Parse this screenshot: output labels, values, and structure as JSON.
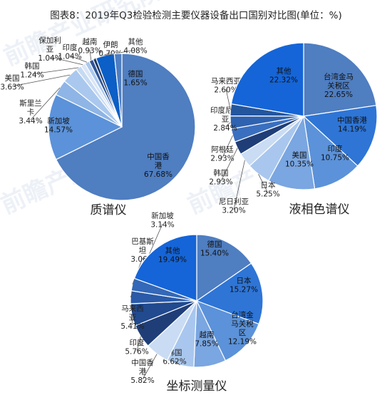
{
  "title": "图表8：2019年Q3检验检测主要仪器设备出口国别对比图(单位：%)",
  "watermark": "前瞻产业研究院",
  "chart_data": [
    {
      "type": "pie",
      "title": "质谱仪",
      "slices": [
        {
          "label": "中国香港",
          "value": 67.68,
          "value_text": "67.68%",
          "color": "#4f7ec1"
        },
        {
          "label": "新加坡",
          "value": 14.57,
          "value_text": "14.57%",
          "color": "#5b92d9"
        },
        {
          "label": "斯里兰卡",
          "value": 3.44,
          "value_text": "3.44%",
          "color": "#8eb5e5"
        },
        {
          "label": "美国",
          "value": 3.63,
          "value_text": "3.63%",
          "color": "#aac8ee"
        },
        {
          "label": "韩国",
          "value": 1.24,
          "value_text": "1.24%",
          "color": "#c6daf3"
        },
        {
          "label": "保加利亚",
          "value": 1.04,
          "value_text": "1.04%",
          "color": "#d9e6f6"
        },
        {
          "label": "印度",
          "value": 1.04,
          "value_text": "1.04%",
          "color": "#aac8ee"
        },
        {
          "label": "越南",
          "value": 0.93,
          "value_text": "0.93%",
          "color": "#2f5597"
        },
        {
          "label": "伊朗",
          "value": 0.7,
          "value_text": "0.70%",
          "color": "#1f3864"
        },
        {
          "label": "其他",
          "value": 4.08,
          "value_text": "4.08%",
          "color": "#0b5fc6"
        },
        {
          "label": "德国",
          "value": 1.65,
          "value_text": "1.65%",
          "color": "#4f7ec1"
        }
      ]
    },
    {
      "type": "pie",
      "title": "液相色谱仪",
      "slices": [
        {
          "label": "台湾金马关税区",
          "value": 22.65,
          "value_text": "22.65%",
          "color": "#4f7ec1"
        },
        {
          "label": "中国香港",
          "value": 14.19,
          "value_text": "14.19%",
          "color": "#2e75d6"
        },
        {
          "label": "印度",
          "value": 10.75,
          "value_text": "10.75%",
          "color": "#5b92d9"
        },
        {
          "label": "美国",
          "value": 10.35,
          "value_text": "10.35%",
          "color": "#7aa6e1"
        },
        {
          "label": "日本",
          "value": 5.25,
          "value_text": "5.25%",
          "color": "#a9c7ee"
        },
        {
          "label": "尼日利亚",
          "value": 3.2,
          "value_text": "3.20%",
          "color": "#c9dcf4"
        },
        {
          "label": "韩国",
          "value": 2.93,
          "value_text": "2.93%",
          "color": "#1f3e78"
        },
        {
          "label": "阿根廷",
          "value": 2.93,
          "value_text": "2.93%",
          "color": "#3a6fc0"
        },
        {
          "label": "印度尼西亚",
          "value": 2.84,
          "value_text": "2.84%",
          "color": "#2f62b0"
        },
        {
          "label": "马来西亚",
          "value": 2.6,
          "value_text": "2.60%",
          "color": "#24569e"
        },
        {
          "label": "其他",
          "value": 22.32,
          "value_text": "22.32%",
          "color": "#1565d8"
        }
      ]
    },
    {
      "type": "pie",
      "title": "坐标测量仪",
      "slices": [
        {
          "label": "德国",
          "value": 15.4,
          "value_text": "15.40%",
          "color": "#4f7ec1"
        },
        {
          "label": "日本",
          "value": 15.27,
          "value_text": "15.27%",
          "color": "#2e75d6"
        },
        {
          "label": "台湾金马关税区",
          "value": 12.19,
          "value_text": "12.19%",
          "color": "#5b92d9"
        },
        {
          "label": "越南",
          "value": 7.85,
          "value_text": "7.85%",
          "color": "#7aa6e1"
        },
        {
          "label": "韩国",
          "value": 6.62,
          "value_text": "6.62%",
          "color": "#a9c7ee"
        },
        {
          "label": "中国香港",
          "value": 5.82,
          "value_text": "5.82%",
          "color": "#c9dcf4"
        },
        {
          "label": "印度",
          "value": 5.76,
          "value_text": "5.76%",
          "color": "#1f3e78"
        },
        {
          "label": "马来西亚",
          "value": 5.41,
          "value_text": "5.41%",
          "color": "#214a8f"
        },
        {
          "label": "新加坡",
          "value": 3.14,
          "value_text": "3.14%",
          "color": "#2a5aa8"
        },
        {
          "label": "巴基斯坦",
          "value": 3.06,
          "value_text": "3.06%",
          "color": "#3468b8"
        },
        {
          "label": "其他",
          "value": 19.49,
          "value_text": "19.49%",
          "color": "#1565d8"
        }
      ]
    }
  ]
}
